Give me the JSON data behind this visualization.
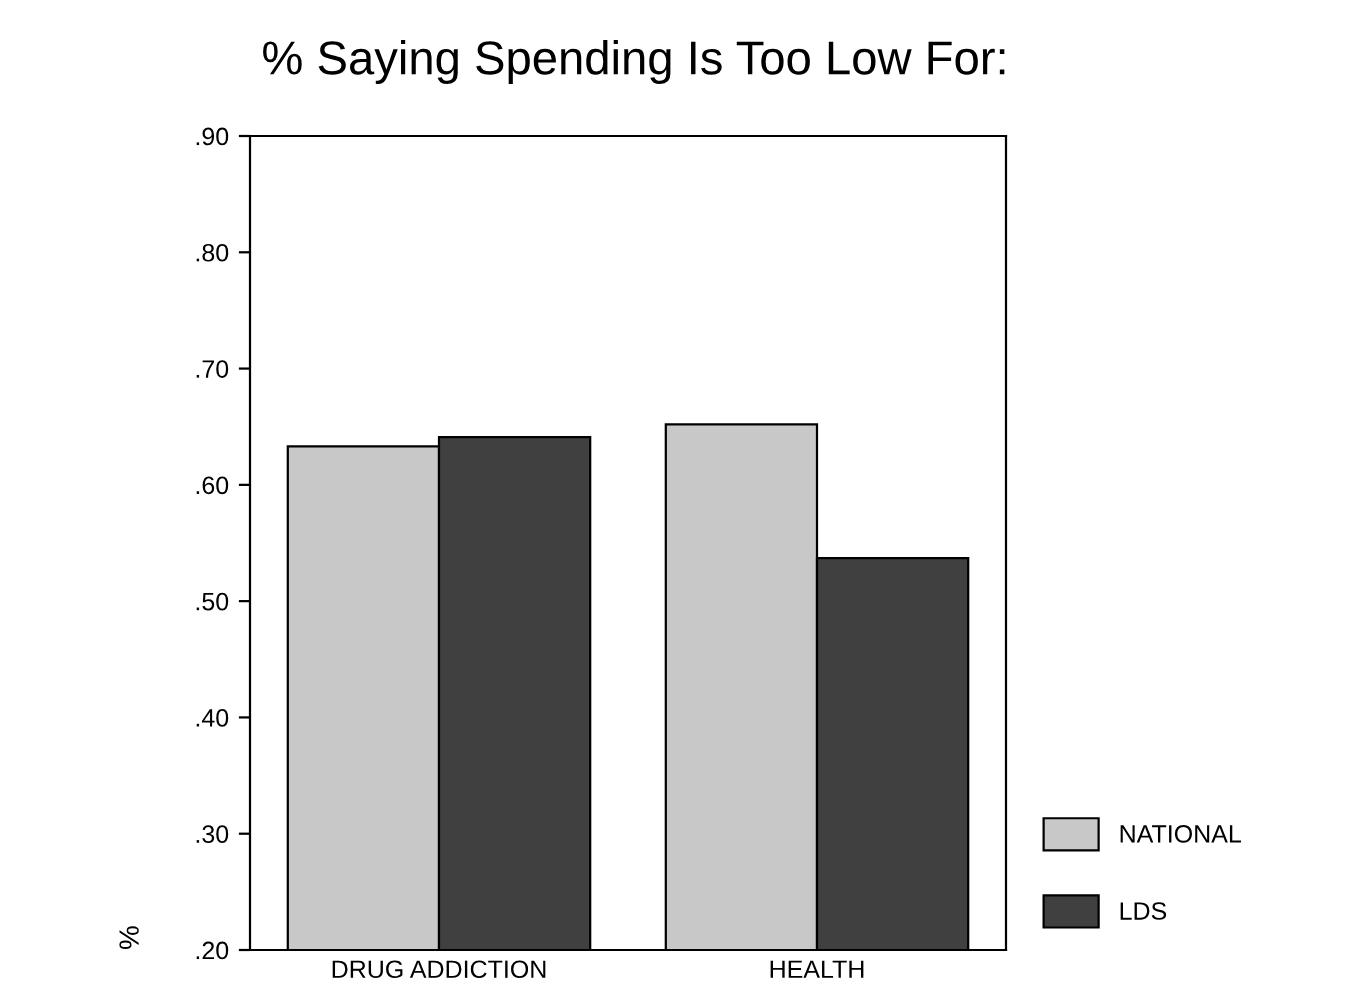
{
  "chart_data": {
    "type": "bar",
    "title": "% Saying Spending Is Too Low For:",
    "ylabel": "%",
    "categories": [
      "DRUG ADDICTION",
      "HEALTH"
    ],
    "series": [
      {
        "name": "NATIONAL",
        "color": "#c8c8c8",
        "values": [
          0.633,
          0.652
        ]
      },
      {
        "name": "LDS",
        "color": "#404040",
        "values": [
          0.641,
          0.537
        ]
      }
    ],
    "ylim": [
      0.2,
      0.9
    ],
    "yticks": [
      {
        "value": 0.2,
        "label": ".20"
      },
      {
        "value": 0.3,
        "label": ".30"
      },
      {
        "value": 0.4,
        "label": ".40"
      },
      {
        "value": 0.5,
        "label": ".50"
      },
      {
        "value": 0.6,
        "label": ".60"
      },
      {
        "value": 0.7,
        "label": ".70"
      },
      {
        "value": 0.8,
        "label": ".80"
      },
      {
        "value": 0.9,
        "label": ".90"
      }
    ],
    "grid": false,
    "legend": "bottom right"
  }
}
